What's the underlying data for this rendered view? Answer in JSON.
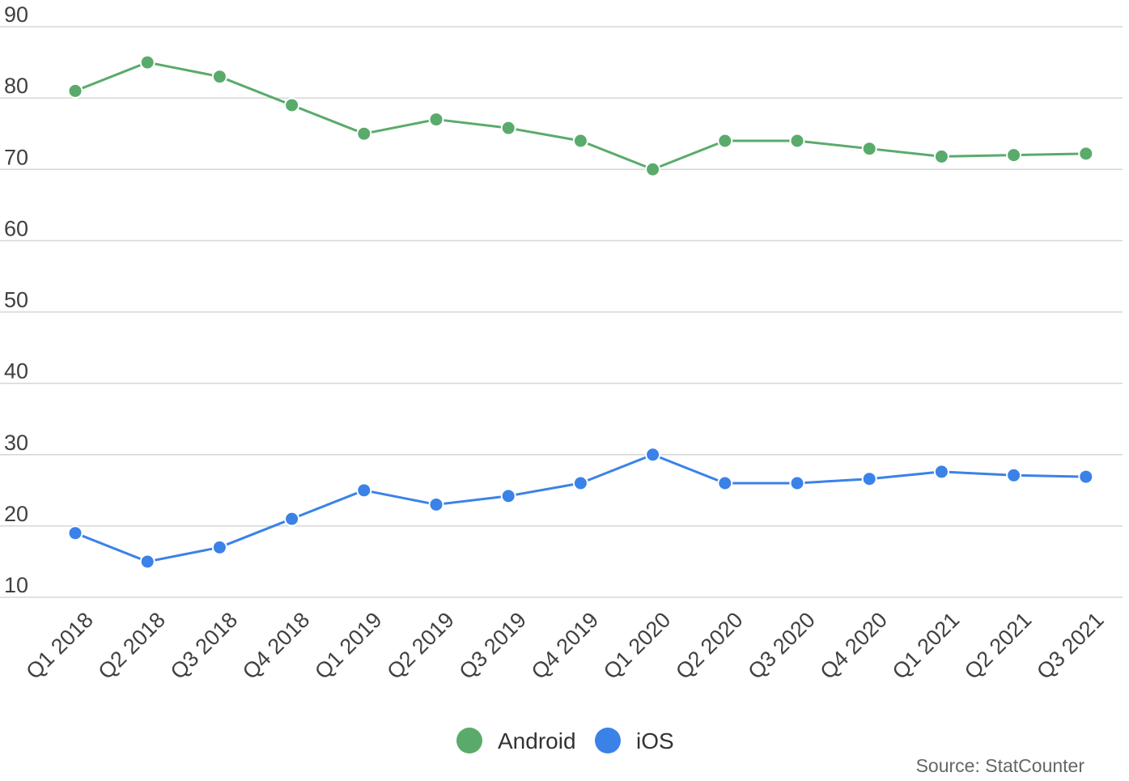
{
  "chart_data": {
    "type": "line",
    "title": "",
    "xlabel": "",
    "ylabel": "",
    "categories": [
      "Q1 2018",
      "Q2 2018",
      "Q3 2018",
      "Q4 2018",
      "Q1 2019",
      "Q2 2019",
      "Q3 2019",
      "Q4 2019",
      "Q1 2020",
      "Q2 2020",
      "Q3 2020",
      "Q4 2020",
      "Q1 2021",
      "Q2 2021",
      "Q3 2021"
    ],
    "series": [
      {
        "name": "Android",
        "color": "#5aab6b",
        "values": [
          81,
          85,
          83,
          79,
          75,
          77,
          75.8,
          74,
          70,
          74,
          74,
          72.9,
          71.8,
          72,
          72.2
        ]
      },
      {
        "name": "iOS",
        "color": "#3b82e8",
        "values": [
          19,
          15,
          17,
          21,
          25,
          23,
          24.2,
          26,
          30,
          26,
          26,
          26.6,
          27.6,
          27.1,
          26.9
        ]
      }
    ],
    "ylim": [
      10,
      90
    ],
    "yticks": [
      10,
      20,
      30,
      40,
      50,
      60,
      70,
      80,
      90
    ],
    "grid": true,
    "legend_position": "bottom-center",
    "source": "Source: StatCounter"
  }
}
